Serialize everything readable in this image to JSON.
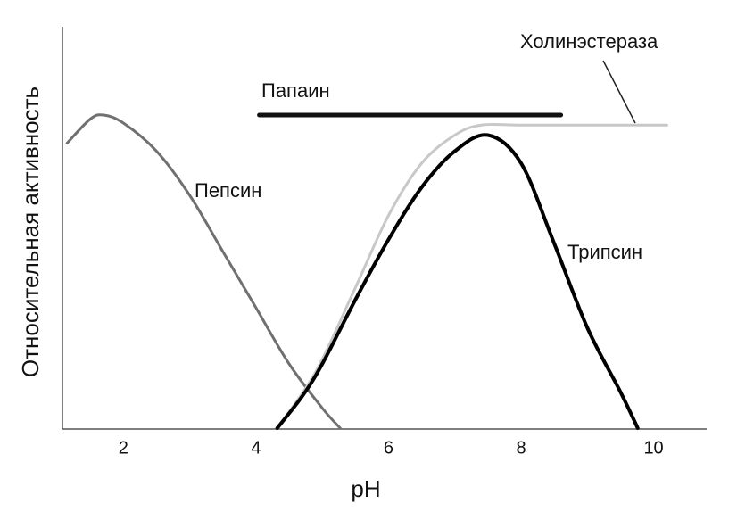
{
  "chart_data": {
    "type": "line",
    "x_label": "pH",
    "y_label": "Относительная активность",
    "xlim": [
      1.08,
      10.8
    ],
    "xticks": [
      2,
      4,
      6,
      8,
      10
    ],
    "ylim": [
      0,
      100
    ],
    "series": [
      {
        "name": "Пепсин",
        "color": "#707070",
        "x": [
          1.15,
          1.5,
          1.7,
          2.0,
          2.5,
          3.0,
          3.5,
          4.0,
          4.5,
          5.0,
          5.27
        ],
        "values": [
          71,
          77,
          78,
          76,
          69,
          58,
          44,
          30,
          16,
          5,
          0
        ]
      },
      {
        "name": "Холинэстераза",
        "color": "#c8c8c8",
        "x": [
          4.32,
          4.9,
          5.5,
          6.0,
          6.5,
          7.0,
          7.4,
          8.0,
          9.0,
          10.2
        ],
        "values": [
          0,
          14,
          35,
          53,
          66,
          73,
          75.5,
          75.5,
          75.5,
          75.5
        ]
      },
      {
        "name": "Трипсин",
        "color": "#000000",
        "x": [
          4.32,
          4.7,
          5.0,
          5.5,
          6.0,
          6.5,
          7.0,
          7.5,
          8.0,
          8.5,
          9.0,
          9.5,
          9.76
        ],
        "values": [
          0,
          8,
          16,
          32,
          47,
          60,
          69,
          73,
          66,
          46,
          25,
          9,
          0
        ]
      },
      {
        "name": "Папаин",
        "color": "#111111",
        "x": [
          4.05,
          8.6
        ],
        "values": [
          78,
          78
        ]
      }
    ]
  }
}
